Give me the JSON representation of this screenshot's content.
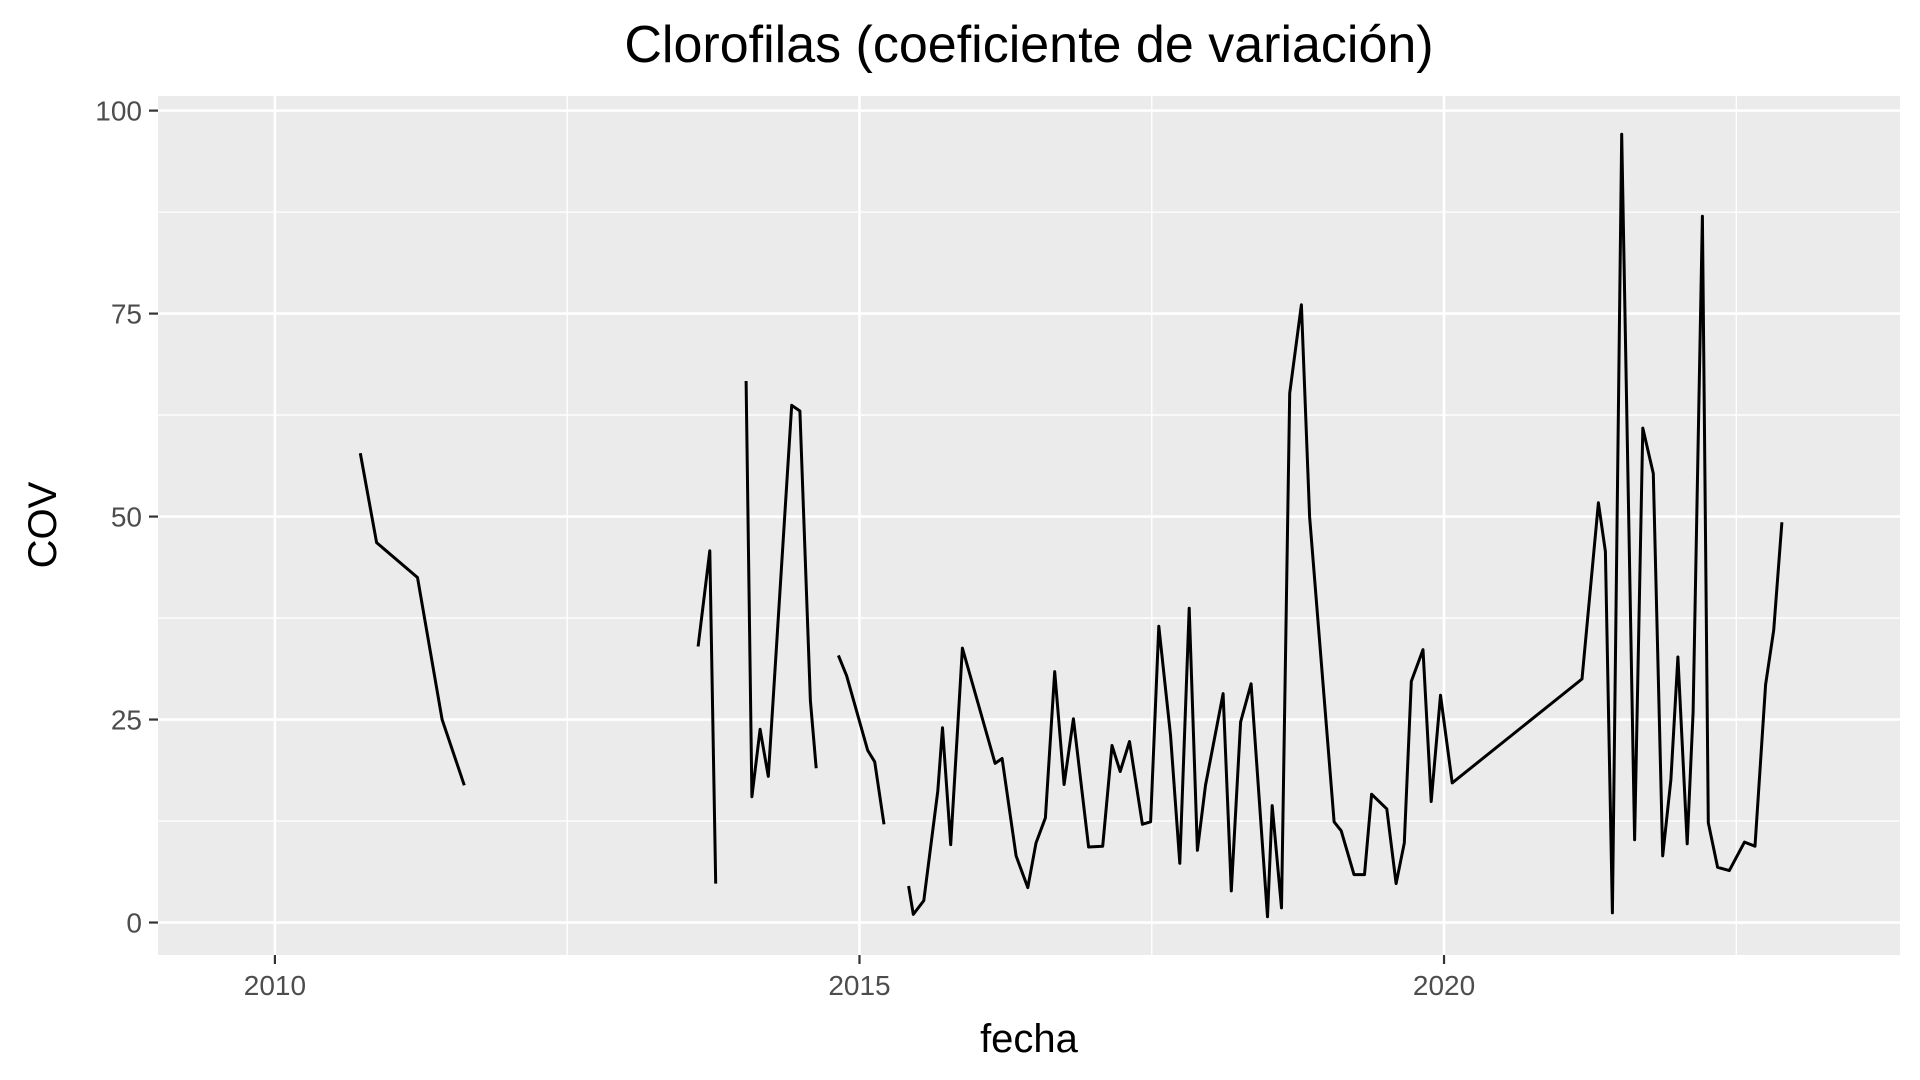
{
  "chart_data": {
    "type": "line",
    "title": "Clorofilas (coeficiente de variación)",
    "xlabel": "fecha",
    "ylabel": "COV",
    "xlim": [
      2009.0,
      2023.9
    ],
    "ylim": [
      -4.0,
      101.8
    ],
    "x_ticks": [
      2010,
      2015,
      2020
    ],
    "x_tick_labels": [
      "2010",
      "2015",
      "2020"
    ],
    "x_minor_ticks": [
      2012.5,
      2017.5,
      2022.5
    ],
    "y_ticks": [
      0,
      25,
      50,
      75,
      100
    ],
    "y_tick_labels": [
      "0",
      "25",
      "50",
      "75",
      "100"
    ],
    "y_minor_ticks": [
      12.5,
      37.5,
      62.5,
      87.5
    ],
    "grid": true,
    "background": "#ebebeb",
    "grid_color": "#ffffff",
    "line_color": "#000000",
    "series": [
      {
        "name": "COV",
        "segments": [
          {
            "x": [
              2010.73,
              2010.87,
              2011.22,
              2011.43,
              2011.62
            ],
            "y": [
              57.8,
              46.8,
              42.5,
              25.0,
              16.9
            ]
          },
          {
            "x": [
              2013.62,
              2013.72,
              2013.77
            ],
            "y": [
              34.0,
              45.8,
              4.8
            ]
          },
          {
            "x": [
              2014.03,
              2014.08,
              2014.15,
              2014.22,
              2014.42,
              2014.49,
              2014.58,
              2014.63
            ],
            "y": [
              66.7,
              15.5,
              23.8,
              18.0,
              63.7,
              63.0,
              27.3,
              19.0
            ]
          },
          {
            "x": [
              2014.82,
              2014.89,
              2015.07,
              2015.13,
              2015.21
            ],
            "y": [
              32.9,
              30.4,
              21.2,
              19.8,
              12.1
            ]
          },
          {
            "x": [
              2015.42,
              2015.46,
              2015.55,
              2015.67,
              2015.71,
              2015.78,
              2015.88,
              2016.16,
              2016.22,
              2016.34,
              2016.44,
              2016.51,
              2016.59,
              2016.67,
              2016.75,
              2016.83,
              2016.96,
              2017.08,
              2017.16,
              2017.23,
              2017.31,
              2017.42,
              2017.49,
              2017.56,
              2017.66,
              2017.74,
              2017.82,
              2017.89,
              2017.96,
              2018.11,
              2018.18,
              2018.26,
              2018.35,
              2018.49,
              2018.53,
              2018.61,
              2018.68,
              2018.78,
              2018.85,
              2019.06,
              2019.12,
              2019.23,
              2019.32,
              2019.38,
              2019.51,
              2019.59,
              2019.66,
              2019.72,
              2019.82,
              2019.89,
              2019.97,
              2020.07,
              2021.18,
              2021.32,
              2021.38,
              2021.44,
              2021.52,
              2021.63,
              2021.7,
              2021.79,
              2021.87,
              2021.94,
              2022.0,
              2022.08,
              2022.13,
              2022.21,
              2022.26,
              2022.34,
              2022.44,
              2022.57,
              2022.66,
              2022.75,
              2022.82,
              2022.89
            ],
            "y": [
              4.5,
              1.0,
              2.7,
              16.2,
              24.0,
              9.6,
              33.8,
              19.6,
              20.2,
              8.2,
              4.3,
              9.8,
              12.9,
              30.9,
              17.0,
              25.1,
              9.3,
              9.4,
              21.8,
              18.6,
              22.3,
              12.1,
              12.4,
              36.5,
              23.1,
              7.3,
              38.7,
              8.9,
              16.9,
              28.2,
              3.9,
              24.7,
              29.4,
              0.7,
              14.4,
              1.8,
              65.2,
              76.1,
              50.0,
              12.4,
              11.3,
              5.9,
              5.9,
              15.8,
              14.0,
              4.8,
              9.8,
              29.7,
              33.6,
              14.9,
              28.0,
              17.2,
              30.0,
              51.7,
              45.7,
              1.2,
              97.1,
              10.2,
              60.9,
              55.3,
              8.2,
              17.6,
              32.7,
              9.7,
              25.9,
              87.0,
              12.3,
              6.8,
              6.4,
              9.9,
              9.4,
              29.3,
              36.0,
              49.3
            ]
          }
        ]
      }
    ]
  }
}
